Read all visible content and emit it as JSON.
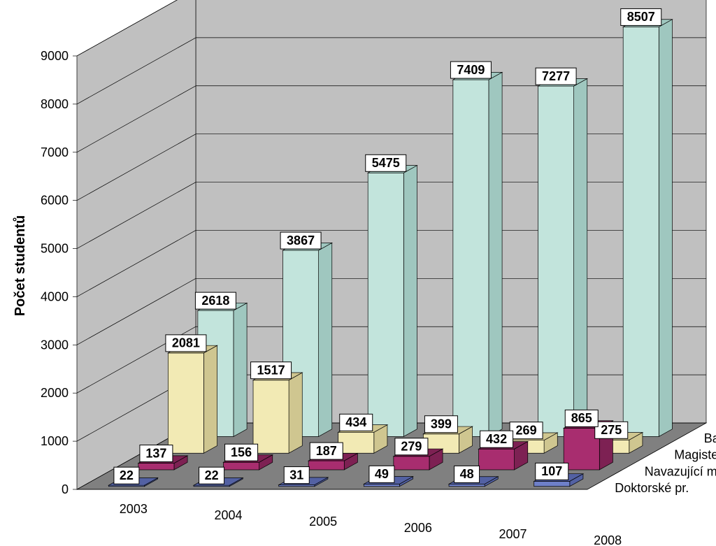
{
  "chart": {
    "type": "bar3d",
    "ylabel": "Počet studentů",
    "y_axis": {
      "min": 0,
      "max": 9000,
      "step": 1000
    },
    "categories": [
      "2003",
      "2004",
      "2005",
      "2006",
      "2007",
      "2008"
    ],
    "series": [
      {
        "name": "Doktorské pr.",
        "color_front": "#6e7fc9",
        "color_side": "#5361a3",
        "values": [
          22,
          22,
          31,
          49,
          48,
          107
        ]
      },
      {
        "name": "Navazující mag. pr.",
        "color_front": "#a82d6f",
        "color_side": "#7d2153",
        "values": [
          137,
          156,
          187,
          279,
          432,
          865
        ]
      },
      {
        "name": "Magisterské pr.",
        "color_front": "#f2eab4",
        "color_side": "#cfc690",
        "values": [
          2081,
          1517,
          434,
          399,
          269,
          275
        ]
      },
      {
        "name": "Bakalářské pr.",
        "color_front": "#c2e4dc",
        "color_side": "#9fc7bf",
        "values": [
          2618,
          3867,
          5475,
          7409,
          7277,
          8507
        ]
      }
    ],
    "label_fontsize": 18,
    "title_fontsize": 20,
    "background_wall": "#c0c0c0",
    "floor_color": "#808080",
    "grid_color": "#000000"
  }
}
